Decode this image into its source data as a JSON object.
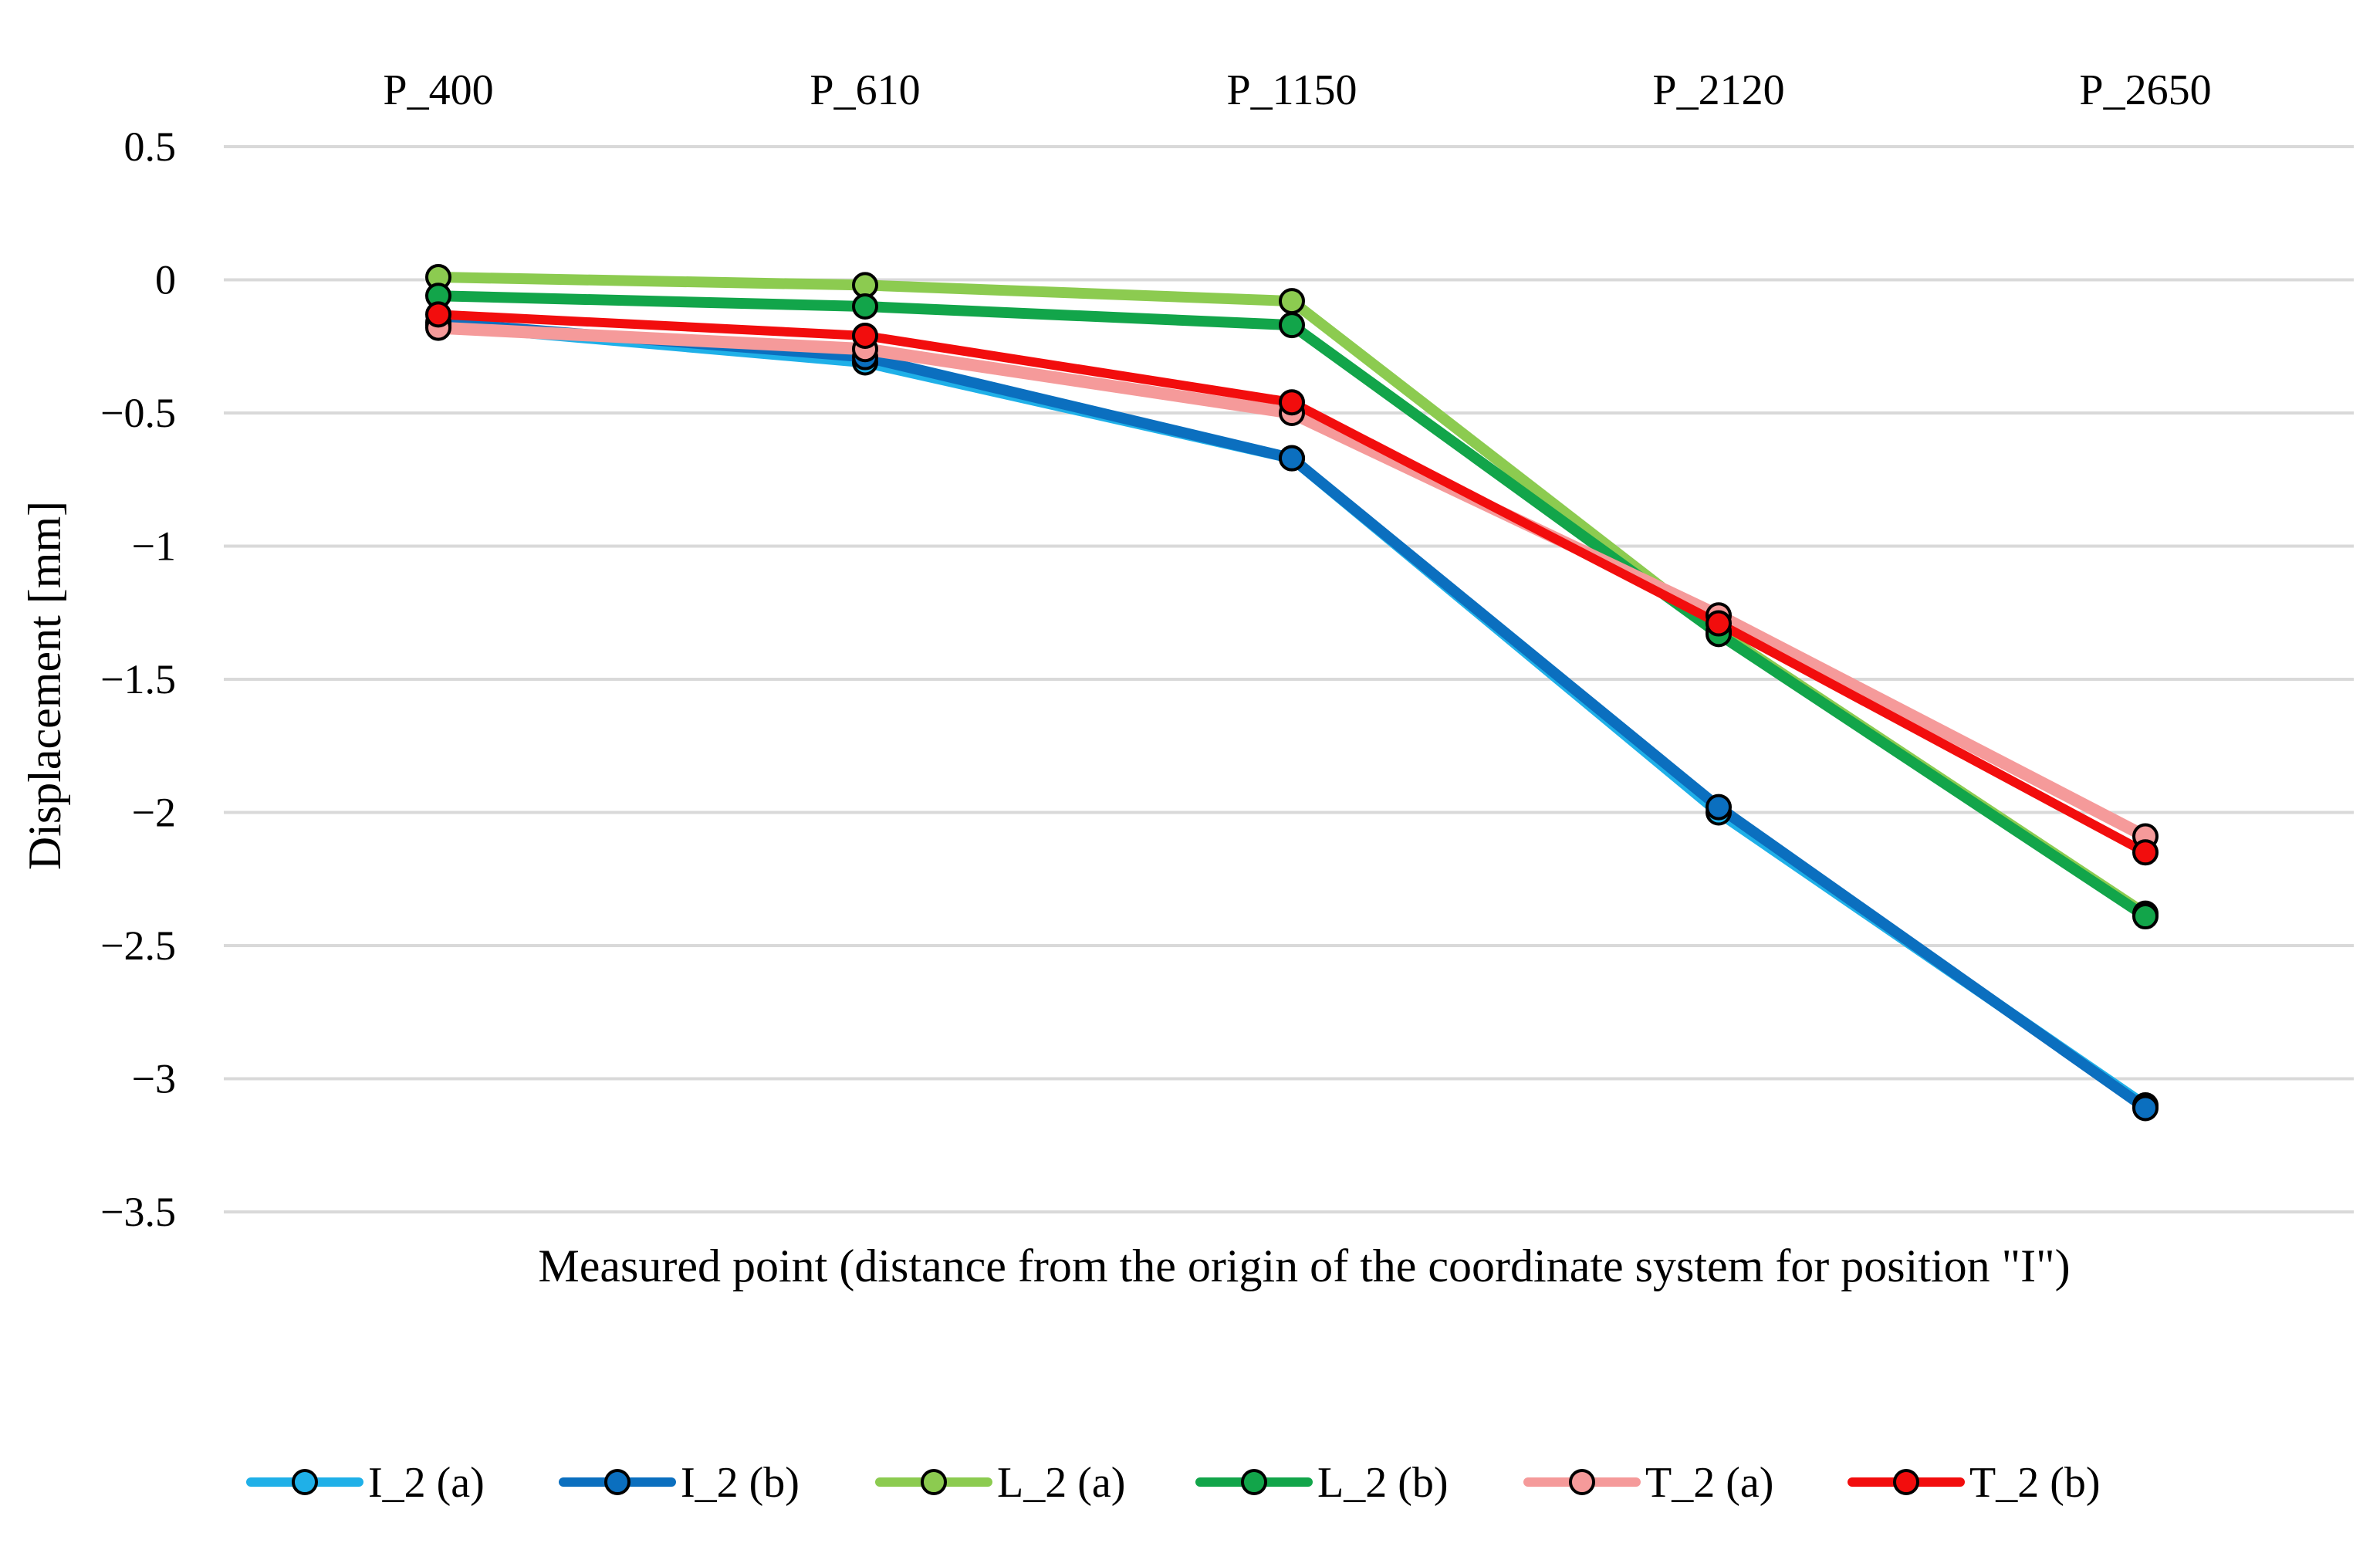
{
  "chart_data": {
    "type": "line",
    "title": "",
    "categories": [
      "P_400",
      "P_610",
      "P_1150",
      "P_2120",
      "P_2650"
    ],
    "xlabel": "Measured point (distance from the origin of the coordinate system for position \"I\")",
    "ylabel": "Displacement [mm]",
    "ylim": [
      -3.5,
      0.5
    ],
    "yticks": [
      0.5,
      0,
      -0.5,
      -1,
      -1.5,
      -2,
      -2.5,
      -3,
      -3.5
    ],
    "ytick_labels": [
      "0.5",
      "0",
      "−0.5",
      "−1",
      "−1.5",
      "−2",
      "−2.5",
      "−3",
      "−3.5"
    ],
    "category_axis_position": "top",
    "grid": true,
    "legend_position": "bottom",
    "series": [
      {
        "name": "I_2 (a)",
        "color": "#1FB0E8",
        "values": [
          -0.17,
          -0.31,
          -0.67,
          -2.0,
          -3.1
        ]
      },
      {
        "name": "I_2 (b)",
        "color": "#0B6FBF",
        "values": [
          -0.16,
          -0.29,
          -0.67,
          -1.98,
          -3.11
        ]
      },
      {
        "name": "L_2 (a)",
        "color": "#8CCB50",
        "values": [
          0.01,
          -0.02,
          -0.08,
          -1.32,
          -2.38
        ]
      },
      {
        "name": "L_2 (b)",
        "color": "#12A54A",
        "values": [
          -0.06,
          -0.1,
          -0.17,
          -1.33,
          -2.39
        ]
      },
      {
        "name": "T_2 (a)",
        "color": "#F59A9A",
        "values": [
          -0.18,
          -0.26,
          -0.5,
          -1.26,
          -2.09
        ]
      },
      {
        "name": "T_2 (b)",
        "color": "#F20D0D",
        "values": [
          -0.13,
          -0.21,
          -0.46,
          -1.29,
          -2.15
        ]
      }
    ]
  }
}
